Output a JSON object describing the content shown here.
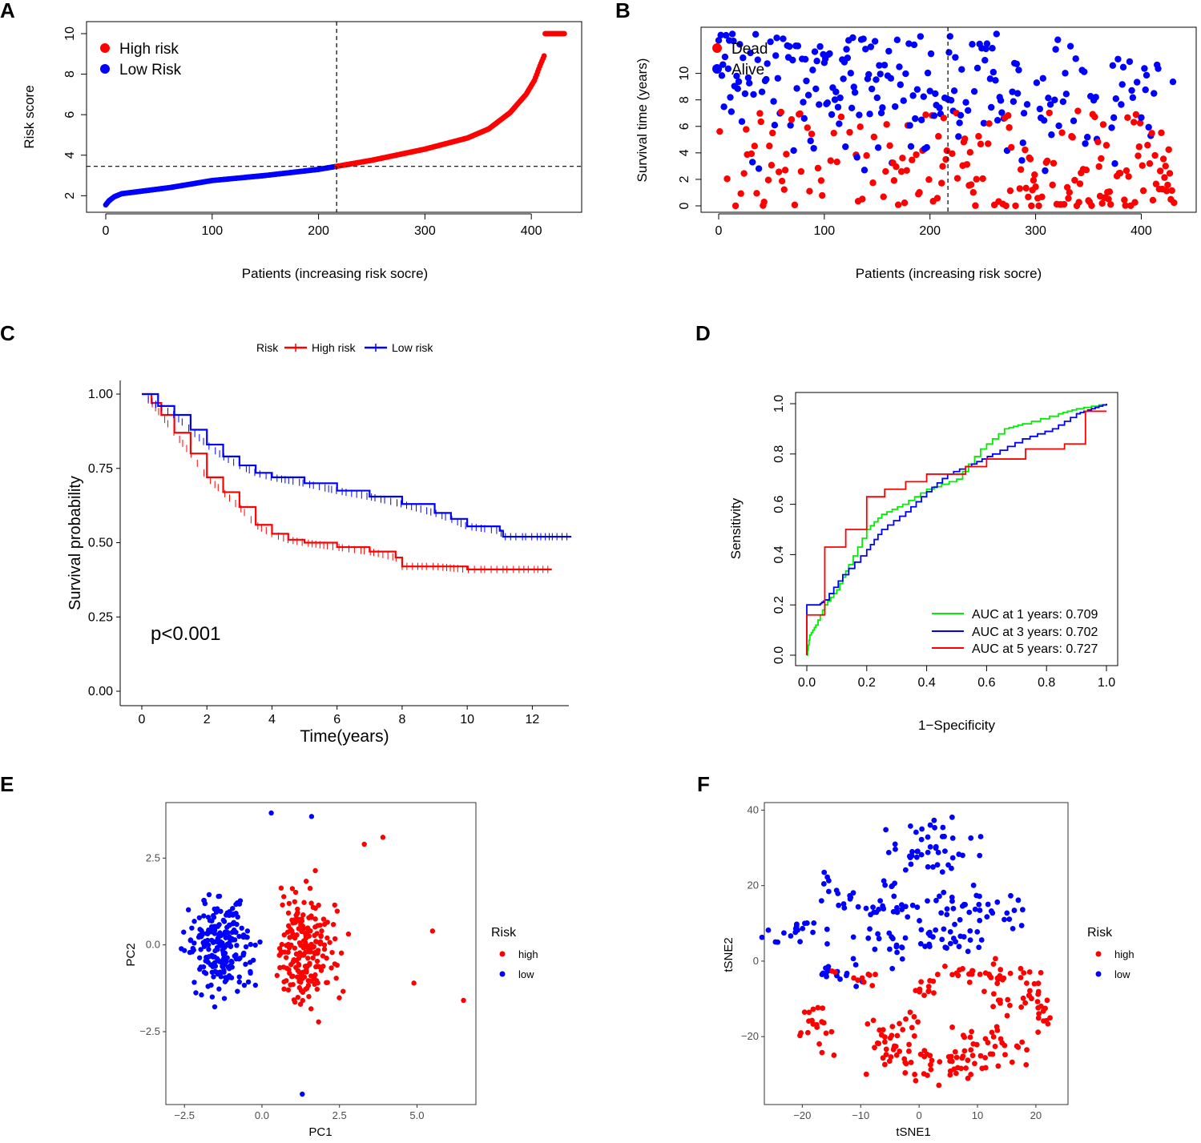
{
  "panel_letters": {
    "A": "A",
    "B": "B",
    "C": "C",
    "D": "D",
    "E": "E",
    "F": "F"
  },
  "colors": {
    "high": "#ff0000",
    "low": "#0000ff",
    "auc1": "#00ee00",
    "auc3": "#0000ff",
    "auc5": "#ff0000"
  },
  "chart_data": [
    {
      "id": "A",
      "type": "scatter",
      "xlabel": "Patients (increasing risk socre)",
      "ylabel": "Risk score",
      "xlim": [
        0,
        430
      ],
      "ylim": [
        1.5,
        10
      ],
      "xticks": [
        "0",
        "100",
        "200",
        "300",
        "400"
      ],
      "yticks": [
        "2",
        "4",
        "6",
        "8",
        "10"
      ],
      "n_patients": 432,
      "cutoff_index": 217,
      "cutoff_score": 3.45,
      "quantiles": [
        [
          0,
          1.55
        ],
        [
          3,
          1.75
        ],
        [
          8,
          1.95
        ],
        [
          15,
          2.1
        ],
        [
          30,
          2.2
        ],
        [
          60,
          2.4
        ],
        [
          100,
          2.75
        ],
        [
          150,
          3.0
        ],
        [
          200,
          3.3
        ],
        [
          217,
          3.45
        ],
        [
          250,
          3.75
        ],
        [
          300,
          4.3
        ],
        [
          340,
          4.85
        ],
        [
          360,
          5.3
        ],
        [
          380,
          6.1
        ],
        [
          395,
          7.0
        ],
        [
          403,
          7.7
        ],
        [
          408,
          8.4
        ],
        [
          412,
          8.9
        ],
        [
          413,
          10.0
        ],
        [
          432,
          10.0
        ]
      ],
      "legend": [
        {
          "label": "High risk",
          "color": "#ff0000"
        },
        {
          "label": "Low Risk",
          "color": "#0000ff"
        }
      ]
    },
    {
      "id": "B",
      "type": "scatter",
      "xlabel": "Patients (increasing risk socre)",
      "ylabel": "Survival time (years)",
      "xlim": [
        0,
        430
      ],
      "ylim": [
        0,
        13
      ],
      "xticks": [
        "0",
        "100",
        "200",
        "300",
        "400"
      ],
      "yticks": [
        "0",
        "2",
        "4",
        "6",
        "8",
        "10"
      ],
      "cutoff_index": 217,
      "legend": [
        {
          "label": "Dead",
          "color": "#ff0000"
        },
        {
          "label": "Alive",
          "color": "#0000ff"
        }
      ]
    },
    {
      "id": "C",
      "type": "line",
      "xlabel": "Time(years)",
      "ylabel": "Survival probability",
      "xlim": [
        0,
        13
      ],
      "ylim": [
        0,
        1
      ],
      "xticks": [
        "0",
        "2",
        "4",
        "6",
        "8",
        "10",
        "12"
      ],
      "yticks": [
        "0.00",
        "0.25",
        "0.50",
        "0.75",
        "1.00"
      ],
      "legend_title": "Risk",
      "pvalue": "p<0.001",
      "series": [
        {
          "name": "High risk",
          "color": "#ff0000",
          "points": [
            [
              0,
              1.0
            ],
            [
              0.3,
              0.97
            ],
            [
              0.6,
              0.93
            ],
            [
              1.0,
              0.87
            ],
            [
              1.5,
              0.8
            ],
            [
              2.0,
              0.72
            ],
            [
              2.5,
              0.67
            ],
            [
              3.0,
              0.62
            ],
            [
              3.5,
              0.56
            ],
            [
              4.0,
              0.53
            ],
            [
              4.5,
              0.51
            ],
            [
              5.0,
              0.5
            ],
            [
              6.0,
              0.485
            ],
            [
              7.0,
              0.47
            ],
            [
              7.8,
              0.45
            ],
            [
              8.0,
              0.42
            ],
            [
              9.0,
              0.42
            ],
            [
              10.0,
              0.41
            ],
            [
              12.6,
              0.41
            ]
          ]
        },
        {
          "name": "Low risk",
          "color": "#0000ff",
          "points": [
            [
              0,
              1.0
            ],
            [
              0.5,
              0.96
            ],
            [
              1.0,
              0.93
            ],
            [
              1.5,
              0.88
            ],
            [
              2.0,
              0.83
            ],
            [
              2.5,
              0.79
            ],
            [
              3.0,
              0.76
            ],
            [
              3.5,
              0.735
            ],
            [
              4.0,
              0.72
            ],
            [
              5.0,
              0.7
            ],
            [
              6.0,
              0.675
            ],
            [
              7.0,
              0.655
            ],
            [
              8.0,
              0.63
            ],
            [
              9.0,
              0.6
            ],
            [
              9.5,
              0.58
            ],
            [
              10.0,
              0.555
            ],
            [
              11.0,
              0.54
            ],
            [
              11.1,
              0.52
            ],
            [
              13.2,
              0.52
            ]
          ]
        }
      ]
    },
    {
      "id": "D",
      "type": "line",
      "xlabel": "1−Specificity",
      "ylabel": "Sensitivity",
      "xlim": [
        0,
        1
      ],
      "ylim": [
        0,
        1
      ],
      "xticks": [
        "0.0",
        "0.2",
        "0.4",
        "0.6",
        "0.8",
        "1.0"
      ],
      "yticks": [
        "0.0",
        "0.2",
        "0.4",
        "0.6",
        "0.8",
        "1.0"
      ],
      "series": [
        {
          "name": "AUC at 1 years: 0.709",
          "color": "#00ee00",
          "points": [
            [
              0,
              0
            ],
            [
              0.01,
              0.08
            ],
            [
              0.03,
              0.12
            ],
            [
              0.06,
              0.2
            ],
            [
              0.1,
              0.26
            ],
            [
              0.14,
              0.36
            ],
            [
              0.2,
              0.5
            ],
            [
              0.25,
              0.56
            ],
            [
              0.32,
              0.6
            ],
            [
              0.4,
              0.66
            ],
            [
              0.5,
              0.7
            ],
            [
              0.58,
              0.82
            ],
            [
              0.66,
              0.9
            ],
            [
              0.72,
              0.92
            ],
            [
              0.84,
              0.96
            ],
            [
              0.9,
              0.98
            ],
            [
              1.0,
              1.0
            ]
          ]
        },
        {
          "name": "AUC at 3 years: 0.702",
          "color": "#0000ff",
          "points": [
            [
              0,
              0
            ],
            [
              0,
              0.2
            ],
            [
              0.04,
              0.2
            ],
            [
              0.06,
              0.22
            ],
            [
              0.12,
              0.32
            ],
            [
              0.2,
              0.42
            ],
            [
              0.25,
              0.5
            ],
            [
              0.33,
              0.57
            ],
            [
              0.4,
              0.65
            ],
            [
              0.47,
              0.72
            ],
            [
              0.55,
              0.76
            ],
            [
              0.62,
              0.8
            ],
            [
              0.72,
              0.86
            ],
            [
              0.82,
              0.9
            ],
            [
              0.9,
              0.96
            ],
            [
              0.95,
              0.98
            ],
            [
              1.0,
              1.0
            ]
          ]
        },
        {
          "name": "AUC at 5 years: 0.727",
          "color": "#ff0000",
          "points": [
            [
              0,
              0
            ],
            [
              0,
              0.16
            ],
            [
              0.06,
              0.16
            ],
            [
              0.06,
              0.43
            ],
            [
              0.13,
              0.43
            ],
            [
              0.13,
              0.5
            ],
            [
              0.2,
              0.5
            ],
            [
              0.2,
              0.63
            ],
            [
              0.26,
              0.63
            ],
            [
              0.26,
              0.66
            ],
            [
              0.33,
              0.66
            ],
            [
              0.33,
              0.69
            ],
            [
              0.4,
              0.69
            ],
            [
              0.4,
              0.72
            ],
            [
              0.53,
              0.72
            ],
            [
              0.53,
              0.75
            ],
            [
              0.6,
              0.75
            ],
            [
              0.6,
              0.78
            ],
            [
              0.73,
              0.78
            ],
            [
              0.73,
              0.82
            ],
            [
              0.86,
              0.82
            ],
            [
              0.86,
              0.84
            ],
            [
              0.93,
              0.84
            ],
            [
              0.93,
              0.97
            ],
            [
              1.0,
              0.97
            ]
          ]
        }
      ]
    },
    {
      "id": "E",
      "type": "scatter",
      "xlabel": "PC1",
      "ylabel": "PC2",
      "xlim": [
        -3.1,
        6.9
      ],
      "ylim": [
        -4.6,
        4.1
      ],
      "xticks": [
        -2.5,
        0.0,
        2.5,
        5.0
      ],
      "xtick_labels": [
        "−2.5",
        "0.0",
        "2.5",
        "5.0"
      ],
      "yticks": [
        -2.5,
        0.0,
        2.5
      ],
      "ytick_labels": [
        "−2.5",
        "0.0",
        "2.5"
      ],
      "legend_title": "Risk",
      "legend": [
        {
          "label": "high",
          "color": "#ff0000"
        },
        {
          "label": "low",
          "color": "#0000ff"
        }
      ]
    },
    {
      "id": "F",
      "type": "scatter",
      "xlabel": "tSNE1",
      "ylabel": "tSNE2",
      "xlim": [
        -26.5,
        25.5
      ],
      "ylim": [
        -38,
        42
      ],
      "xticks": [
        -20,
        -10,
        0,
        10,
        20
      ],
      "xtick_labels": [
        "−20",
        "−10",
        "0",
        "10",
        "20"
      ],
      "yticks": [
        -20,
        0,
        20,
        40
      ],
      "ytick_labels": [
        "−20",
        "0",
        "20",
        "40"
      ],
      "legend_title": "Risk",
      "legend": [
        {
          "label": "high",
          "color": "#ff0000"
        },
        {
          "label": "low",
          "color": "#0000ff"
        }
      ]
    }
  ]
}
